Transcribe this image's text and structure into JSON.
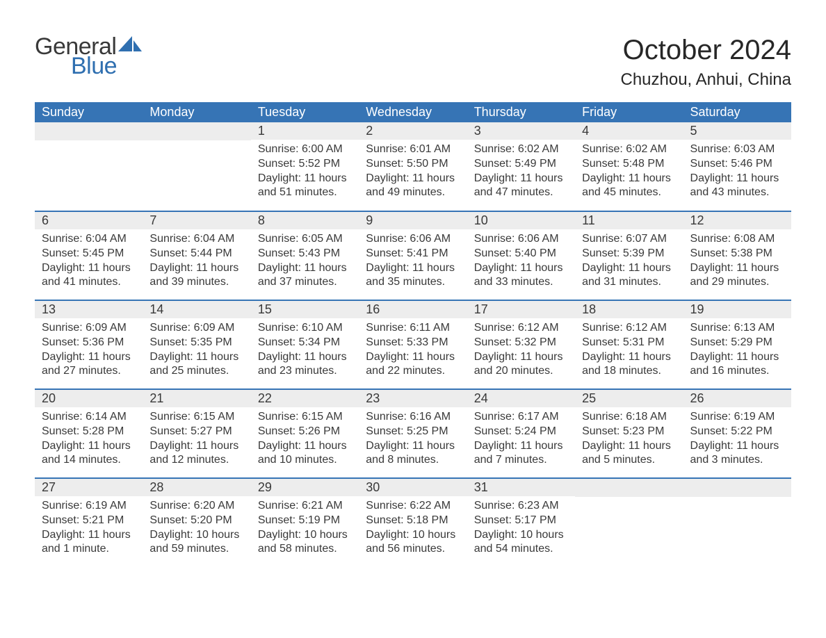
{
  "logo": {
    "word1": "General",
    "word2": "Blue"
  },
  "title": "October 2024",
  "location": "Chuzhou, Anhui, China",
  "colors": {
    "header_bg": "#3674b5",
    "header_text": "#ffffff",
    "daynum_bg": "#ededed",
    "text": "#393939",
    "row_divider": "#3674b5",
    "logo_accent": "#2f6fb0",
    "page_bg": "#ffffff"
  },
  "typography": {
    "month_title_fontsize": 40,
    "location_fontsize": 24,
    "weekday_header_fontsize": 18,
    "daynum_fontsize": 18,
    "body_fontsize": 16,
    "logo_fontsize": 34
  },
  "calendar": {
    "weekdays": [
      "Sunday",
      "Monday",
      "Tuesday",
      "Wednesday",
      "Thursday",
      "Friday",
      "Saturday"
    ],
    "labels": {
      "sunrise": "Sunrise:",
      "sunset": "Sunset:",
      "daylight": "Daylight:"
    },
    "weeks": [
      [
        {
          "day": "",
          "empty": true
        },
        {
          "day": "",
          "empty": true
        },
        {
          "day": "1",
          "sunrise": "6:00 AM",
          "sunset": "5:52 PM",
          "daylight": "11 hours and 51 minutes."
        },
        {
          "day": "2",
          "sunrise": "6:01 AM",
          "sunset": "5:50 PM",
          "daylight": "11 hours and 49 minutes."
        },
        {
          "day": "3",
          "sunrise": "6:02 AM",
          "sunset": "5:49 PM",
          "daylight": "11 hours and 47 minutes."
        },
        {
          "day": "4",
          "sunrise": "6:02 AM",
          "sunset": "5:48 PM",
          "daylight": "11 hours and 45 minutes."
        },
        {
          "day": "5",
          "sunrise": "6:03 AM",
          "sunset": "5:46 PM",
          "daylight": "11 hours and 43 minutes."
        }
      ],
      [
        {
          "day": "6",
          "sunrise": "6:04 AM",
          "sunset": "5:45 PM",
          "daylight": "11 hours and 41 minutes."
        },
        {
          "day": "7",
          "sunrise": "6:04 AM",
          "sunset": "5:44 PM",
          "daylight": "11 hours and 39 minutes."
        },
        {
          "day": "8",
          "sunrise": "6:05 AM",
          "sunset": "5:43 PM",
          "daylight": "11 hours and 37 minutes."
        },
        {
          "day": "9",
          "sunrise": "6:06 AM",
          "sunset": "5:41 PM",
          "daylight": "11 hours and 35 minutes."
        },
        {
          "day": "10",
          "sunrise": "6:06 AM",
          "sunset": "5:40 PM",
          "daylight": "11 hours and 33 minutes."
        },
        {
          "day": "11",
          "sunrise": "6:07 AM",
          "sunset": "5:39 PM",
          "daylight": "11 hours and 31 minutes."
        },
        {
          "day": "12",
          "sunrise": "6:08 AM",
          "sunset": "5:38 PM",
          "daylight": "11 hours and 29 minutes."
        }
      ],
      [
        {
          "day": "13",
          "sunrise": "6:09 AM",
          "sunset": "5:36 PM",
          "daylight": "11 hours and 27 minutes."
        },
        {
          "day": "14",
          "sunrise": "6:09 AM",
          "sunset": "5:35 PM",
          "daylight": "11 hours and 25 minutes."
        },
        {
          "day": "15",
          "sunrise": "6:10 AM",
          "sunset": "5:34 PM",
          "daylight": "11 hours and 23 minutes."
        },
        {
          "day": "16",
          "sunrise": "6:11 AM",
          "sunset": "5:33 PM",
          "daylight": "11 hours and 22 minutes."
        },
        {
          "day": "17",
          "sunrise": "6:12 AM",
          "sunset": "5:32 PM",
          "daylight": "11 hours and 20 minutes."
        },
        {
          "day": "18",
          "sunrise": "6:12 AM",
          "sunset": "5:31 PM",
          "daylight": "11 hours and 18 minutes."
        },
        {
          "day": "19",
          "sunrise": "6:13 AM",
          "sunset": "5:29 PM",
          "daylight": "11 hours and 16 minutes."
        }
      ],
      [
        {
          "day": "20",
          "sunrise": "6:14 AM",
          "sunset": "5:28 PM",
          "daylight": "11 hours and 14 minutes."
        },
        {
          "day": "21",
          "sunrise": "6:15 AM",
          "sunset": "5:27 PM",
          "daylight": "11 hours and 12 minutes."
        },
        {
          "day": "22",
          "sunrise": "6:15 AM",
          "sunset": "5:26 PM",
          "daylight": "11 hours and 10 minutes."
        },
        {
          "day": "23",
          "sunrise": "6:16 AM",
          "sunset": "5:25 PM",
          "daylight": "11 hours and 8 minutes."
        },
        {
          "day": "24",
          "sunrise": "6:17 AM",
          "sunset": "5:24 PM",
          "daylight": "11 hours and 7 minutes."
        },
        {
          "day": "25",
          "sunrise": "6:18 AM",
          "sunset": "5:23 PM",
          "daylight": "11 hours and 5 minutes."
        },
        {
          "day": "26",
          "sunrise": "6:19 AM",
          "sunset": "5:22 PM",
          "daylight": "11 hours and 3 minutes."
        }
      ],
      [
        {
          "day": "27",
          "sunrise": "6:19 AM",
          "sunset": "5:21 PM",
          "daylight": "11 hours and 1 minute."
        },
        {
          "day": "28",
          "sunrise": "6:20 AM",
          "sunset": "5:20 PM",
          "daylight": "10 hours and 59 minutes."
        },
        {
          "day": "29",
          "sunrise": "6:21 AM",
          "sunset": "5:19 PM",
          "daylight": "10 hours and 58 minutes."
        },
        {
          "day": "30",
          "sunrise": "6:22 AM",
          "sunset": "5:18 PM",
          "daylight": "10 hours and 56 minutes."
        },
        {
          "day": "31",
          "sunrise": "6:23 AM",
          "sunset": "5:17 PM",
          "daylight": "10 hours and 54 minutes."
        },
        {
          "day": "",
          "empty": true
        },
        {
          "day": "",
          "empty": true
        }
      ]
    ]
  }
}
